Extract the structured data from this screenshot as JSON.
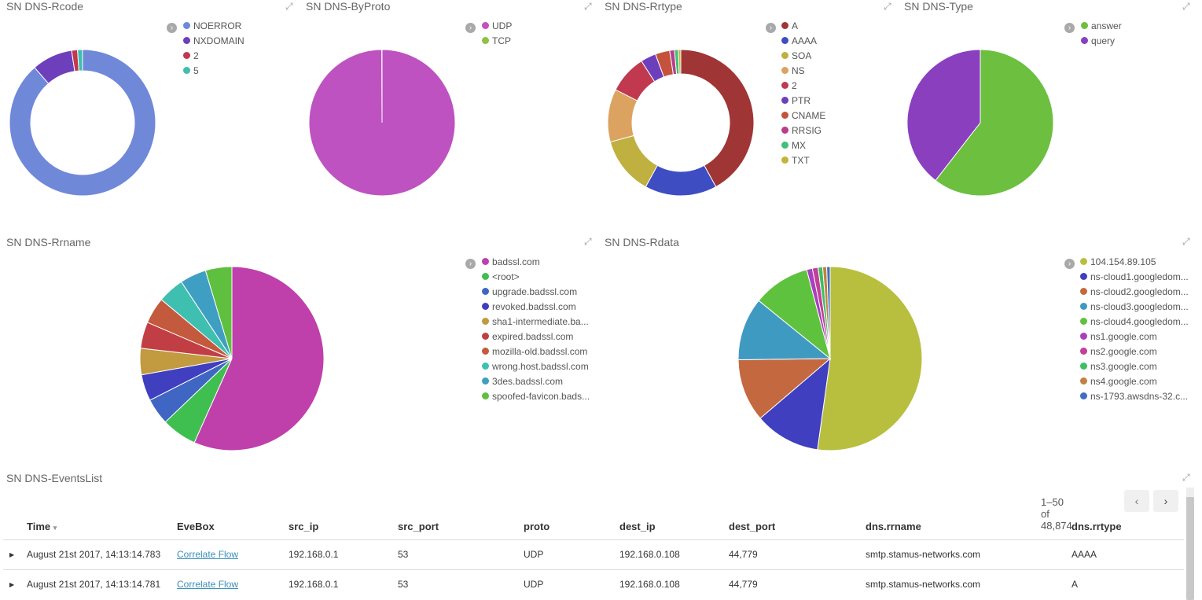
{
  "panels": {
    "rcode": {
      "title": "SN DNS-Rcode",
      "legend": [
        {
          "label": "NOERROR",
          "color": "#7088d8"
        },
        {
          "label": "NXDOMAIN",
          "color": "#6d3fba"
        },
        {
          "label": "2",
          "color": "#c1394e"
        },
        {
          "label": "5",
          "color": "#3fbfad"
        }
      ],
      "chart_data": {
        "type": "pie",
        "donut": true,
        "categories": [
          "NOERROR",
          "NXDOMAIN",
          "2",
          "5"
        ],
        "values": [
          88.6,
          9.0,
          1.3,
          1.1
        ]
      }
    },
    "byproto": {
      "title": "SN DNS-ByProto",
      "legend": [
        {
          "label": "UDP",
          "color": "#bd52c0"
        },
        {
          "label": "TCP",
          "color": "#8fc23f"
        }
      ],
      "chart_data": {
        "type": "pie",
        "donut": false,
        "categories": [
          "UDP",
          "TCP"
        ],
        "values": [
          99.95,
          0.05
        ]
      }
    },
    "rrtype": {
      "title": "SN DNS-Rrtype",
      "legend": [
        {
          "label": "A",
          "color": "#a03535"
        },
        {
          "label": "AAAA",
          "color": "#3f4dc2"
        },
        {
          "label": "SOA",
          "color": "#bfb03f"
        },
        {
          "label": "NS",
          "color": "#dca25f"
        },
        {
          "label": "2",
          "color": "#c1394e"
        },
        {
          "label": "PTR",
          "color": "#6d3fba"
        },
        {
          "label": "CNAME",
          "color": "#c4523d"
        },
        {
          "label": "RRSIG",
          "color": "#b73e8a"
        },
        {
          "label": "MX",
          "color": "#3fbf7a"
        },
        {
          "label": "TXT",
          "color": "#c2b43a"
        }
      ],
      "chart_data": {
        "type": "pie",
        "donut": true,
        "categories": [
          "A",
          "AAAA",
          "SOA",
          "NS",
          "2",
          "PTR",
          "CNAME",
          "RRSIG",
          "MX",
          "TXT"
        ],
        "values": [
          39.5,
          15.0,
          12.0,
          11.0,
          8.0,
          3.2,
          3.0,
          1.0,
          0.8,
          0.5
        ]
      }
    },
    "type": {
      "title": "SN DNS-Type",
      "legend": [
        {
          "label": "answer",
          "color": "#6cbf3f"
        },
        {
          "label": "query",
          "color": "#8a3fbf"
        }
      ],
      "chart_data": {
        "type": "pie",
        "donut": false,
        "categories": [
          "answer",
          "query"
        ],
        "values": [
          60.5,
          39.5
        ]
      }
    },
    "rrname": {
      "title": "SN DNS-Rrname",
      "legend": [
        {
          "label": "badssl.com",
          "color": "#bf3fab"
        },
        {
          "label": "<root>",
          "color": "#3fbf50"
        },
        {
          "label": "upgrade.badssl.com",
          "color": "#3f66c2"
        },
        {
          "label": "revoked.badssl.com",
          "color": "#3f3fbf"
        },
        {
          "label": "sha1-intermediate.ba...",
          "color": "#c29a3f"
        },
        {
          "label": "expired.badssl.com",
          "color": "#c13f44"
        },
        {
          "label": "mozilla-old.badssl.com",
          "color": "#c45a3d"
        },
        {
          "label": "wrong.host.badssl.com",
          "color": "#3fbfb0"
        },
        {
          "label": "3des.badssl.com",
          "color": "#3f9fc2"
        },
        {
          "label": "spoofed-favicon.bads...",
          "color": "#5fbf3f"
        }
      ],
      "chart_data": {
        "type": "pie",
        "donut": false,
        "categories": [
          "badssl.com",
          "<root>",
          "upgrade.badssl.com",
          "revoked.badssl.com",
          "sha1-intermediate.ba...",
          "expired.badssl.com",
          "mozilla-old.badssl.com",
          "wrong.host.badssl.com",
          "3des.badssl.com",
          "spoofed-favicon.bads..."
        ],
        "values": [
          55.0,
          6.0,
          4.5,
          4.5,
          4.5,
          4.5,
          4.5,
          4.5,
          4.5,
          4.5
        ]
      }
    },
    "rdata": {
      "title": "SN DNS-Rdata",
      "legend": [
        {
          "label": "104.154.89.105",
          "color": "#b8bf3f"
        },
        {
          "label": "ns-cloud1.googledom...",
          "color": "#3f3fbf"
        },
        {
          "label": "ns-cloud2.googledom...",
          "color": "#c4683f"
        },
        {
          "label": "ns-cloud3.googledom...",
          "color": "#3f9ac2"
        },
        {
          "label": "ns-cloud4.googledom...",
          "color": "#5fc23f"
        },
        {
          "label": "ns1.google.com",
          "color": "#a93fbf"
        },
        {
          "label": "ns2.google.com",
          "color": "#c23f9a"
        },
        {
          "label": "ns3.google.com",
          "color": "#3fbf60"
        },
        {
          "label": "ns4.google.com",
          "color": "#c2823f"
        },
        {
          "label": "ns-1793.awsdns-32.c...",
          "color": "#3f6ec2"
        }
      ],
      "chart_data": {
        "type": "pie",
        "donut": false,
        "categories": [
          "104.154.89.105",
          "ns-cloud1.googledom...",
          "ns-cloud2.googledom...",
          "ns-cloud3.googledom...",
          "ns-cloud4.googledom...",
          "ns1.google.com",
          "ns2.google.com",
          "ns3.google.com",
          "ns4.google.com",
          "ns-1793.awsdns-32.c..."
        ],
        "values": [
          52.0,
          11.5,
          11.0,
          11.0,
          10.0,
          1.0,
          1.0,
          0.8,
          0.7,
          0.6
        ]
      }
    }
  },
  "events": {
    "title": "SN DNS-EventsList",
    "pager": "1–50 of 48,874",
    "prev_icon": "‹",
    "next_icon": "›",
    "columns": [
      "Time",
      "EveBox",
      "src_ip",
      "src_port",
      "proto",
      "dest_ip",
      "dest_port",
      "dns.rrname",
      "dns.rrtype"
    ],
    "sort_indicator": "▾",
    "rows": [
      {
        "time": "August 21st 2017, 14:13:14.783",
        "evebox": "Correlate Flow",
        "src_ip": "192.168.0.1",
        "src_port": "53",
        "proto": "UDP",
        "dest_ip": "192.168.0.108",
        "dest_port": "44,779",
        "rrname": "smtp.stamus-networks.com",
        "rrtype": "AAAA"
      },
      {
        "time": "August 21st 2017, 14:13:14.781",
        "evebox": "Correlate Flow",
        "src_ip": "192.168.0.1",
        "src_port": "53",
        "proto": "UDP",
        "dest_ip": "192.168.0.108",
        "dest_port": "44,779",
        "rrname": "smtp.stamus-networks.com",
        "rrtype": "A"
      }
    ]
  },
  "icons": {
    "expand": "expand-arrows-icon",
    "legend_toggle": "chevron-right-icon",
    "row_toggle": "triangle-right-icon"
  }
}
